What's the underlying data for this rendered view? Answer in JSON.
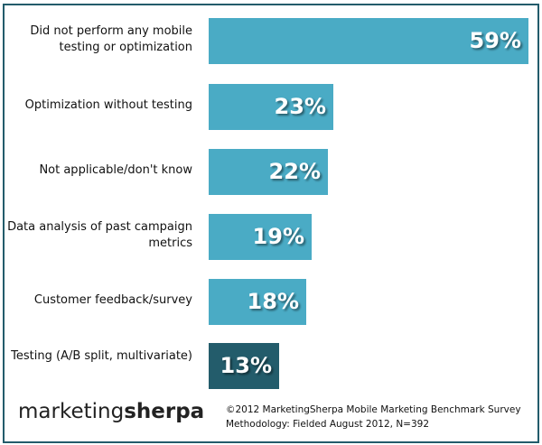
{
  "chart_data": {
    "type": "bar",
    "orientation": "horizontal",
    "categories": [
      "Did not perform any mobile testing or optimization",
      "Optimization without testing",
      "Not applicable/don't know",
      "Data analysis of past campaign metrics",
      "Customer feedback/survey",
      "Testing (A/B split, multivariate)"
    ],
    "values": [
      59,
      23,
      22,
      19,
      18,
      13
    ],
    "value_labels": [
      "59%",
      "23%",
      "22%",
      "19%",
      "18%",
      "13%"
    ],
    "colors": [
      "#4aabc5",
      "#4aabc5",
      "#4aabc5",
      "#4aabc5",
      "#4aabc5",
      "#235c6b"
    ],
    "xlim": [
      0,
      60
    ],
    "grid": false
  },
  "logo": {
    "text_light": "marketing",
    "text_bold": "sherpa"
  },
  "source": {
    "line1": "©2012 MarketingSherpa Mobile Marketing Benchmark Survey",
    "line2": "Methodology: Fielded August 2012, N=392"
  }
}
